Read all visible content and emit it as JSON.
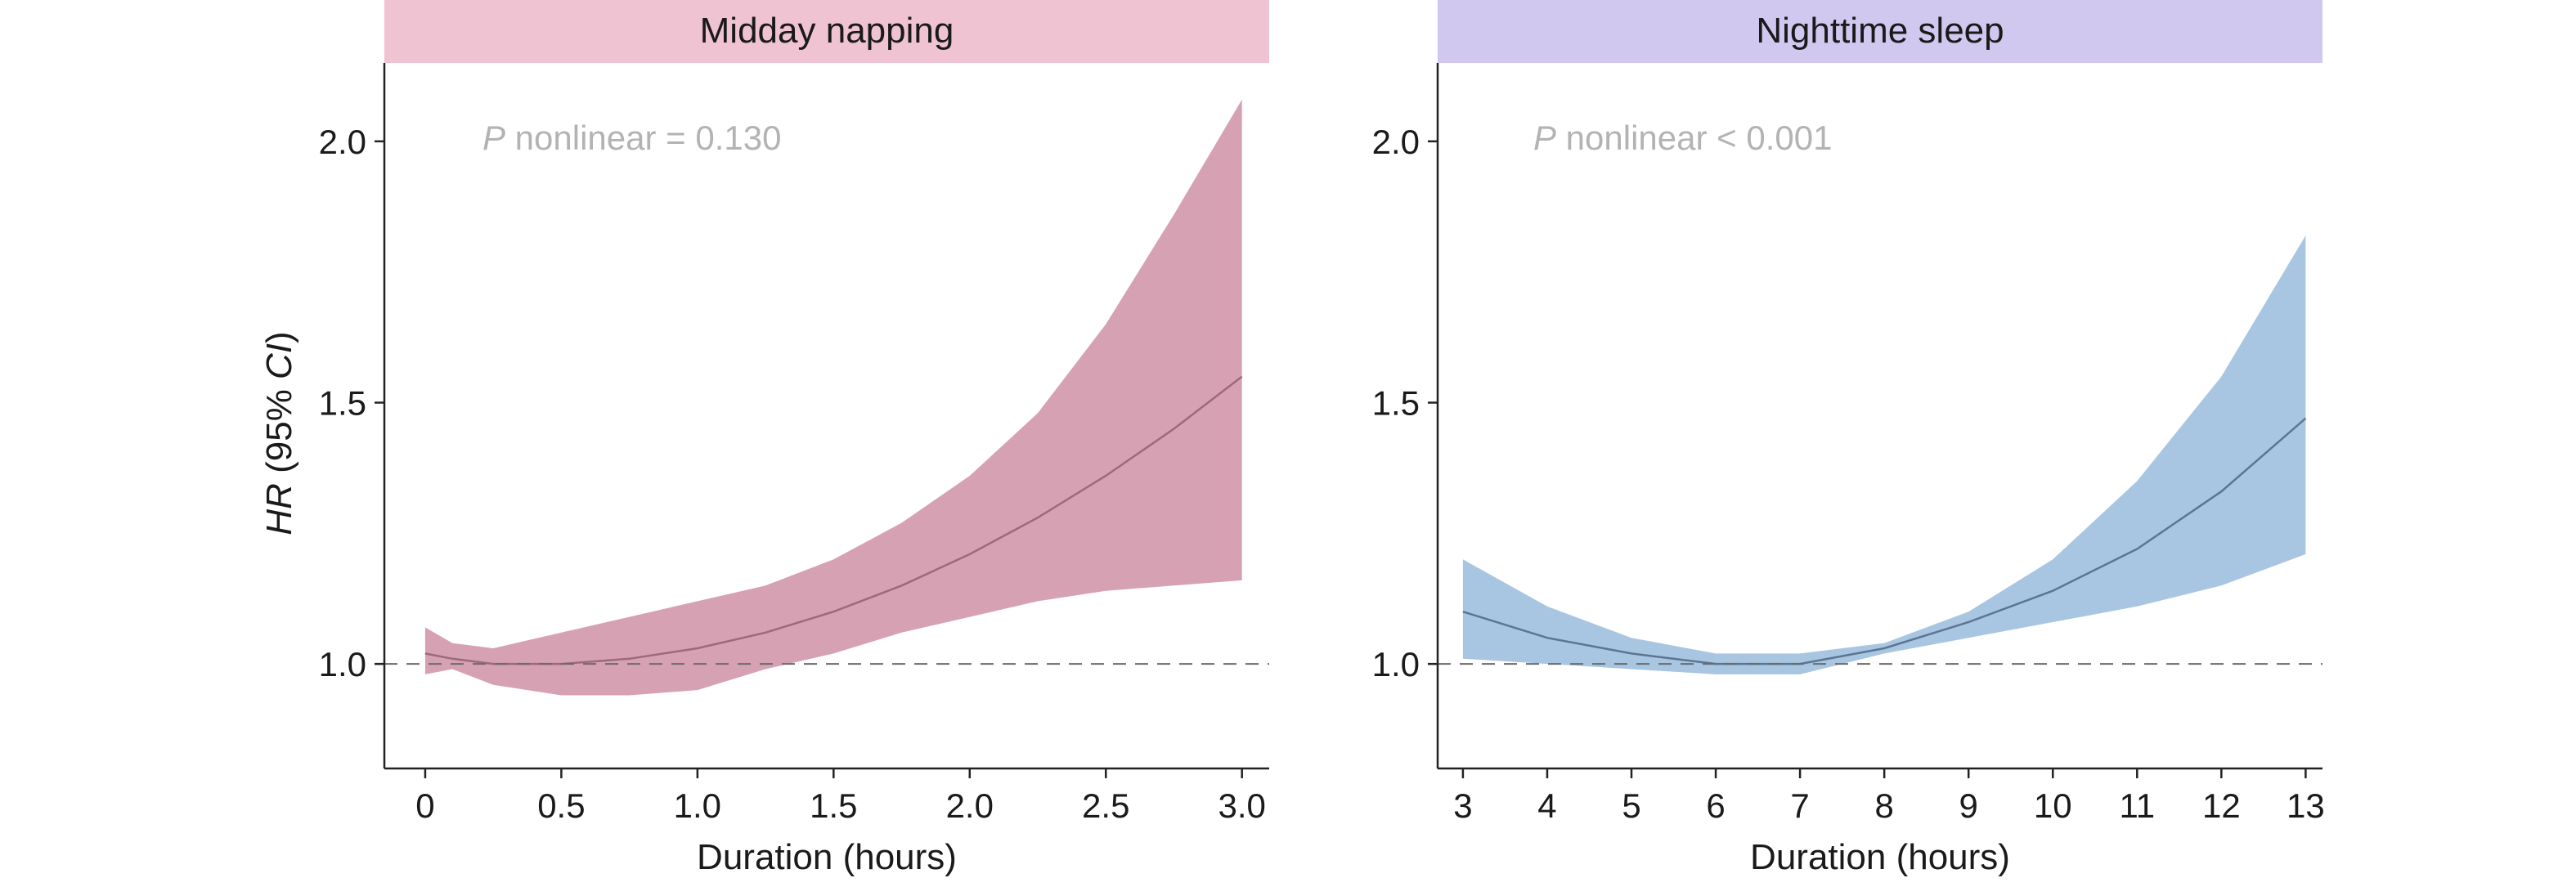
{
  "figure": {
    "ylabel_italic": "HR",
    "ylabel_rest": " (95% ",
    "ylabel_ci": "CI",
    "ylabel_close": ")"
  },
  "chart_data": [
    {
      "type": "line",
      "title": "Midday napping",
      "strip_color": "#efc3d1",
      "annotation_p": "P",
      "annotation_text": " nonlinear = 0.130",
      "xlabel": "Duration (hours)",
      "ylabel": "HR (95% CI)",
      "xlim": [
        -0.15,
        3.1
      ],
      "ylim": [
        0.8,
        2.15
      ],
      "xticks": [
        0,
        0.5,
        1.0,
        1.5,
        2.0,
        2.5,
        3.0
      ],
      "xtick_labels": [
        "0",
        "0.5",
        "1.0",
        "1.5",
        "2.0",
        "2.5",
        "3.0"
      ],
      "yticks": [
        1.0,
        1.5,
        2.0
      ],
      "ytick_labels": [
        "1.0",
        "1.5",
        "2.0"
      ],
      "reference_line": 1.0,
      "band_color": "#d6a2b3",
      "line_color": "#9c6a7d",
      "series": [
        {
          "x": [
            0,
            0.1,
            0.25,
            0.5,
            0.75,
            1.0,
            1.25,
            1.5,
            1.75,
            2.0,
            2.25,
            2.5,
            2.75,
            3.0
          ],
          "hr": [
            1.02,
            1.01,
            1.0,
            1.0,
            1.01,
            1.03,
            1.06,
            1.1,
            1.15,
            1.21,
            1.28,
            1.36,
            1.45,
            1.55
          ],
          "lower": [
            0.98,
            0.99,
            0.96,
            0.94,
            0.94,
            0.95,
            0.99,
            1.02,
            1.06,
            1.09,
            1.12,
            1.14,
            1.15,
            1.16
          ],
          "upper": [
            1.07,
            1.04,
            1.03,
            1.06,
            1.09,
            1.12,
            1.15,
            1.2,
            1.27,
            1.36,
            1.48,
            1.65,
            1.86,
            2.08
          ]
        }
      ]
    },
    {
      "type": "line",
      "title": "Nighttime sleep",
      "strip_color": "#d0c8ef",
      "annotation_p": "P",
      "annotation_text": " nonlinear < 0.001",
      "xlabel": "Duration (hours)",
      "ylabel": "",
      "xlim": [
        2.7,
        13.2
      ],
      "ylim": [
        0.8,
        2.15
      ],
      "xticks": [
        3,
        4,
        5,
        6,
        7,
        8,
        9,
        10,
        11,
        12,
        13
      ],
      "xtick_labels": [
        "3",
        "4",
        "5",
        "6",
        "7",
        "8",
        "9",
        "10",
        "11",
        "12",
        "13"
      ],
      "yticks": [
        1.0,
        1.5,
        2.0
      ],
      "ytick_labels": [
        "1.0",
        "1.5",
        "2.0"
      ],
      "reference_line": 1.0,
      "band_color": "#a8c6e2",
      "line_color": "#5d7590",
      "series": [
        {
          "x": [
            3,
            4,
            5,
            6,
            6.5,
            7,
            8,
            9,
            10,
            11,
            12,
            13
          ],
          "hr": [
            1.1,
            1.05,
            1.02,
            1.0,
            1.0,
            1.0,
            1.03,
            1.08,
            1.14,
            1.22,
            1.33,
            1.47
          ],
          "lower": [
            1.01,
            1.0,
            0.99,
            0.98,
            0.98,
            0.98,
            1.02,
            1.05,
            1.08,
            1.11,
            1.15,
            1.21
          ],
          "upper": [
            1.2,
            1.11,
            1.05,
            1.02,
            1.02,
            1.02,
            1.04,
            1.1,
            1.2,
            1.35,
            1.55,
            1.82
          ]
        }
      ]
    }
  ]
}
